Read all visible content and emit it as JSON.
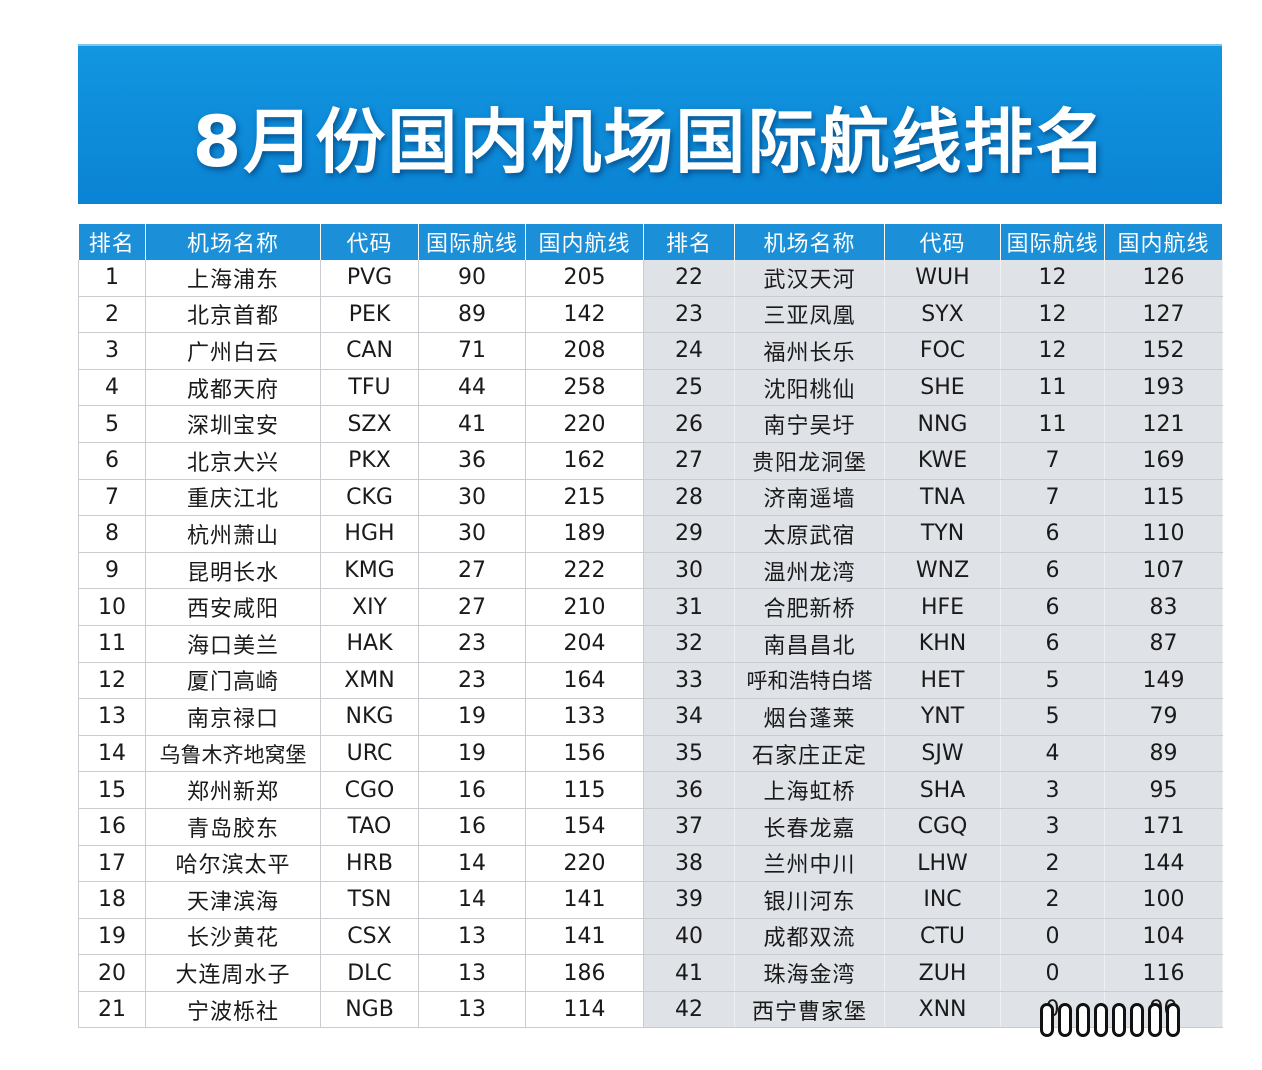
{
  "title": "8月份国内机场国际航线排名",
  "headers": [
    "排名",
    "机场名称",
    "代码",
    "国际航线",
    "国内航线",
    "排名",
    "机场名称",
    "代码",
    "国际航线",
    "国内航线"
  ],
  "left": [
    [
      "1",
      "上海浦东",
      "PVG",
      "90",
      "205"
    ],
    [
      "2",
      "北京首都",
      "PEK",
      "89",
      "142"
    ],
    [
      "3",
      "广州白云",
      "CAN",
      "71",
      "208"
    ],
    [
      "4",
      "成都天府",
      "TFU",
      "44",
      "258"
    ],
    [
      "5",
      "深圳宝安",
      "SZX",
      "41",
      "220"
    ],
    [
      "6",
      "北京大兴",
      "PKX",
      "36",
      "162"
    ],
    [
      "7",
      "重庆江北",
      "CKG",
      "30",
      "215"
    ],
    [
      "8",
      "杭州萧山",
      "HGH",
      "30",
      "189"
    ],
    [
      "9",
      "昆明长水",
      "KMG",
      "27",
      "222"
    ],
    [
      "10",
      "西安咸阳",
      "XIY",
      "27",
      "210"
    ],
    [
      "11",
      "海口美兰",
      "HAK",
      "23",
      "204"
    ],
    [
      "12",
      "厦门高崎",
      "XMN",
      "23",
      "164"
    ],
    [
      "13",
      "南京禄口",
      "NKG",
      "19",
      "133"
    ],
    [
      "14",
      "乌鲁木齐地窝堡",
      "URC",
      "19",
      "156"
    ],
    [
      "15",
      "郑州新郑",
      "CGO",
      "16",
      "115"
    ],
    [
      "16",
      "青岛胶东",
      "TAO",
      "16",
      "154"
    ],
    [
      "17",
      "哈尔滨太平",
      "HRB",
      "14",
      "220"
    ],
    [
      "18",
      "天津滨海",
      "TSN",
      "14",
      "141"
    ],
    [
      "19",
      "长沙黄花",
      "CSX",
      "13",
      "141"
    ],
    [
      "20",
      "大连周水子",
      "DLC",
      "13",
      "186"
    ],
    [
      "21",
      "宁波栎社",
      "NGB",
      "13",
      "114"
    ]
  ],
  "right": [
    [
      "22",
      "武汉天河",
      "WUH",
      "12",
      "126"
    ],
    [
      "23",
      "三亚凤凰",
      "SYX",
      "12",
      "127"
    ],
    [
      "24",
      "福州长乐",
      "FOC",
      "12",
      "152"
    ],
    [
      "25",
      "沈阳桃仙",
      "SHE",
      "11",
      "193"
    ],
    [
      "26",
      "南宁吴圩",
      "NNG",
      "11",
      "121"
    ],
    [
      "27",
      "贵阳龙洞堡",
      "KWE",
      "7",
      "169"
    ],
    [
      "28",
      "济南遥墙",
      "TNA",
      "7",
      "115"
    ],
    [
      "29",
      "太原武宿",
      "TYN",
      "6",
      "110"
    ],
    [
      "30",
      "温州龙湾",
      "WNZ",
      "6",
      "107"
    ],
    [
      "31",
      "合肥新桥",
      "HFE",
      "6",
      "83"
    ],
    [
      "32",
      "南昌昌北",
      "KHN",
      "6",
      "87"
    ],
    [
      "33",
      "呼和浩特白塔",
      "HET",
      "5",
      "149"
    ],
    [
      "34",
      "烟台蓬莱",
      "YNT",
      "5",
      "79"
    ],
    [
      "35",
      "石家庄正定",
      "SJW",
      "4",
      "89"
    ],
    [
      "36",
      "上海虹桥",
      "SHA",
      "3",
      "95"
    ],
    [
      "37",
      "长春龙嘉",
      "CGQ",
      "3",
      "171"
    ],
    [
      "38",
      "兰州中川",
      "LHW",
      "2",
      "144"
    ],
    [
      "39",
      "银川河东",
      "INC",
      "2",
      "100"
    ],
    [
      "40",
      "成都双流",
      "CTU",
      "0",
      "104"
    ],
    [
      "41",
      "珠海金湾",
      "ZUH",
      "0",
      "116"
    ],
    [
      "42",
      "西宁曹家堡",
      "XNN",
      "0",
      "90"
    ]
  ]
}
